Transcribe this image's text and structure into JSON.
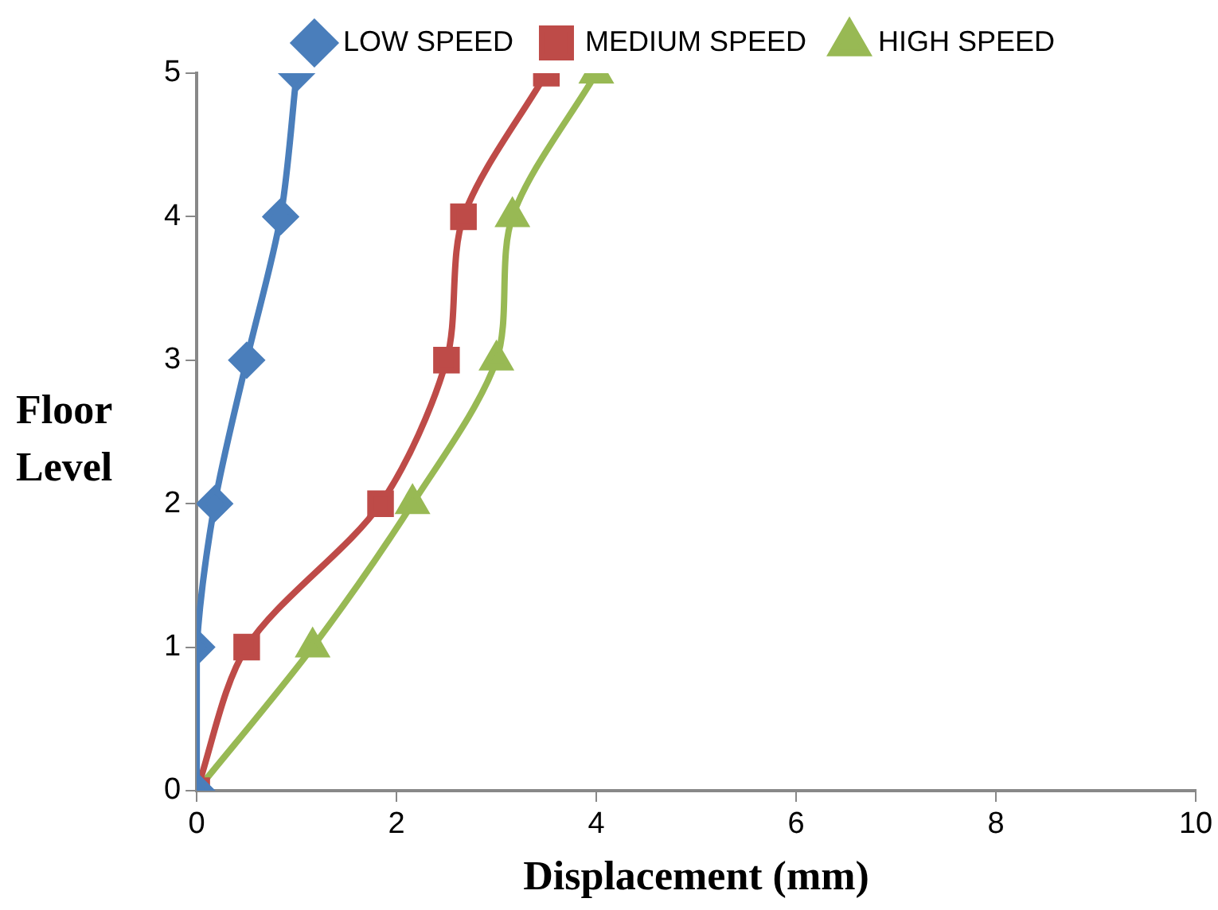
{
  "chart_data": {
    "type": "line",
    "xlabel": "Displacement (mm)",
    "ylabel": "Floor Level",
    "xlim": [
      0,
      10
    ],
    "xticks": [
      0,
      2,
      4,
      6,
      8,
      10
    ],
    "ylim": [
      0,
      5
    ],
    "yticks": [
      0,
      1,
      2,
      3,
      4,
      5
    ],
    "grid": false,
    "legend": "top",
    "line_style": "solid",
    "series": [
      {
        "name": "LOW SPEED",
        "color": "#4a7ebb",
        "marker": "diamond",
        "x": [
          0,
          0,
          0.18,
          0.5,
          0.84,
          1.0
        ],
        "values": [
          0,
          1,
          2,
          3,
          4,
          5
        ]
      },
      {
        "name": "MEDIUM SPEED",
        "color": "#be4b48",
        "marker": "square",
        "x": [
          0,
          0.5,
          1.84,
          2.5,
          2.67,
          3.5
        ],
        "values": [
          0,
          1,
          2,
          3,
          4,
          5
        ]
      },
      {
        "name": "HIGH SPEED",
        "color": "#98b954",
        "marker": "triangle",
        "x": [
          0,
          1.16,
          2.16,
          3.0,
          3.16,
          4.0
        ],
        "values": [
          0,
          1,
          2,
          3,
          4,
          5
        ]
      }
    ]
  }
}
